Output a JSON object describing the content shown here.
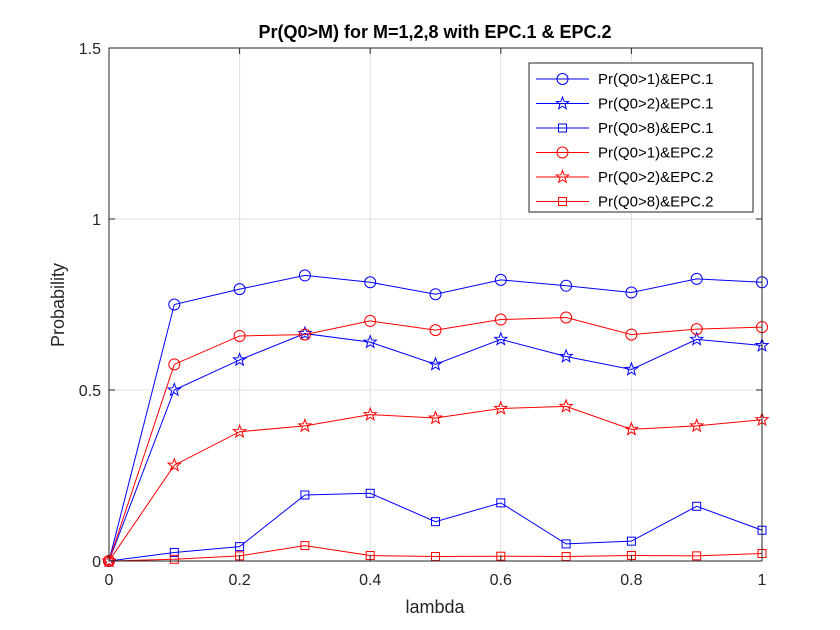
{
  "chart_data": {
    "type": "line",
    "title": "Pr(Q0>M) for M=1,2,8 with EPC.1 & EPC.2",
    "xlabel": "lambda",
    "ylabel": "Probability",
    "xlim": [
      0,
      1
    ],
    "ylim": [
      0,
      1.5
    ],
    "xticks": [
      0,
      0.2,
      0.4,
      0.6,
      0.8,
      1
    ],
    "xtick_labels": [
      "0",
      "0.2",
      "0.4",
      "0.6",
      "0.8",
      "1"
    ],
    "yticks": [
      0,
      0.5,
      1,
      1.5
    ],
    "ytick_labels": [
      "0",
      "0.5",
      "1",
      "1.5"
    ],
    "grid": true,
    "legend_position": "top-right",
    "x": [
      0,
      0.1,
      0.2,
      0.3,
      0.4,
      0.5,
      0.6,
      0.7,
      0.8,
      0.9,
      1.0
    ],
    "series": [
      {
        "name": "Pr(Q0>1)&EPC.1",
        "color": "#0000ff",
        "marker": "circle",
        "values": [
          0,
          0.75,
          0.795,
          0.835,
          0.815,
          0.78,
          0.822,
          0.805,
          0.785,
          0.825,
          0.815
        ]
      },
      {
        "name": "Pr(Q0>2)&EPC.1",
        "color": "#0000ff",
        "marker": "star",
        "values": [
          0,
          0.5,
          0.588,
          0.665,
          0.64,
          0.575,
          0.648,
          0.598,
          0.56,
          0.648,
          0.63
        ]
      },
      {
        "name": "Pr(Q0>8)&EPC.1",
        "color": "#0000ff",
        "marker": "square",
        "values": [
          0,
          0.025,
          0.042,
          0.193,
          0.198,
          0.115,
          0.17,
          0.05,
          0.058,
          0.16,
          0.09
        ]
      },
      {
        "name": "Pr(Q0>1)&EPC.2",
        "color": "#ff0000",
        "marker": "circle",
        "values": [
          0,
          0.575,
          0.658,
          0.662,
          0.702,
          0.675,
          0.706,
          0.712,
          0.662,
          0.678,
          0.684
        ]
      },
      {
        "name": "Pr(Q0>2)&EPC.2",
        "color": "#ff0000",
        "marker": "star",
        "values": [
          0,
          0.28,
          0.378,
          0.395,
          0.428,
          0.418,
          0.446,
          0.452,
          0.385,
          0.395,
          0.413
        ]
      },
      {
        "name": "Pr(Q0>8)&EPC.2",
        "color": "#ff0000",
        "marker": "square",
        "values": [
          0,
          0.005,
          0.015,
          0.045,
          0.016,
          0.013,
          0.014,
          0.013,
          0.016,
          0.015,
          0.022
        ]
      }
    ]
  }
}
